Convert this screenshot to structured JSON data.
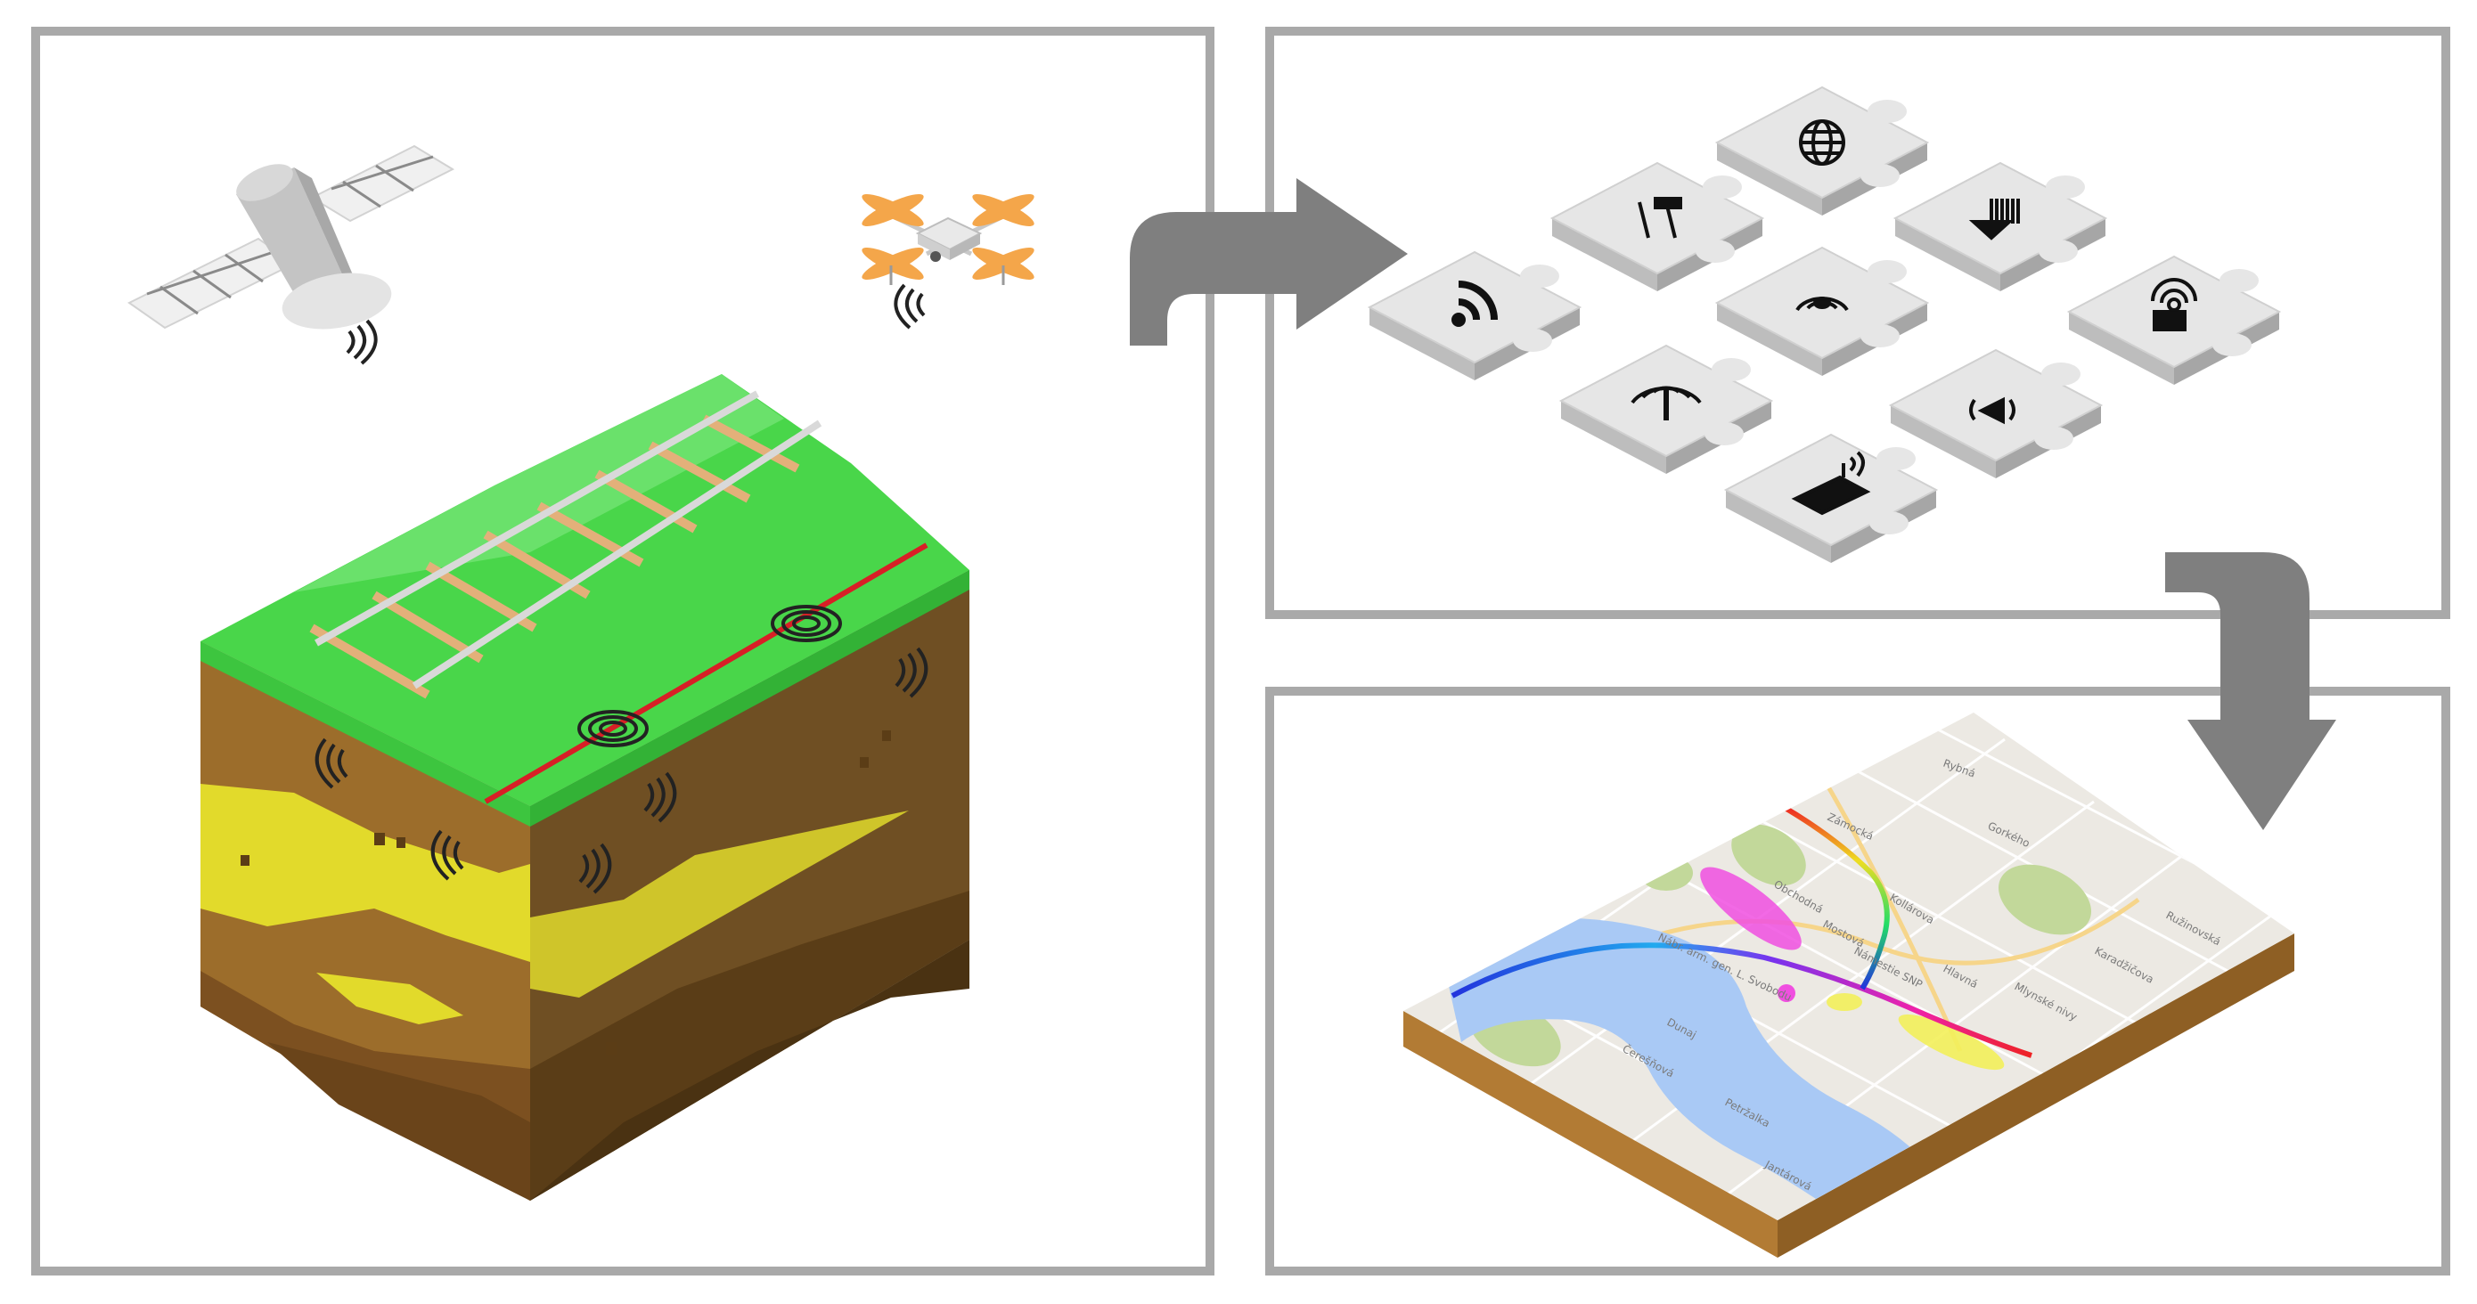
{
  "panels": {
    "sensing": {
      "icons": [
        "satellite-icon",
        "drone-icon",
        "wireless-signal-icon",
        "railway-track-icon",
        "soil-cross-section-icon"
      ]
    },
    "integration": {
      "puzzle_pieces": [
        {
          "icon": "globe-icon"
        },
        {
          "icon": "tools-icon"
        },
        {
          "icon": "lidar-scan-icon"
        },
        {
          "icon": "wifi-icon"
        },
        {
          "icon": "wireless-signal-icon"
        },
        {
          "icon": "satellite-dish-icon"
        },
        {
          "icon": "antenna-icon"
        },
        {
          "icon": "geophone-icon"
        },
        {
          "icon": "router-icon"
        }
      ]
    },
    "mapping": {
      "map_labels": [
        "Rybná",
        "Zámocká",
        "Gorkého",
        "Obchodná",
        "Mostová",
        "Nábr. arm. gen. L. Svobodu",
        "Kollárova",
        "Hlavná",
        "Petržalka",
        "Jantárová",
        "Námestie SNP",
        "Mlynské nivy",
        "Karadžičova",
        "Ružinovská",
        "Čerešňová",
        "Dunaj"
      ]
    }
  },
  "colors": {
    "frame": "#a9a9a9",
    "arrow": "#7f7f7f",
    "grass": "#49d64a",
    "rail": "#e3b07a",
    "trench": "#d81f26",
    "soil_dark": "#6f4f23",
    "soil_light": "#9c6d2b",
    "clay": "#e2da2b",
    "puzzle": "#e6e6e6",
    "river": "#a9c9f5",
    "park": "#c2d89a",
    "hotspot_magenta": "#f04fe0",
    "hotspot_yellow": "#f3f05a"
  }
}
